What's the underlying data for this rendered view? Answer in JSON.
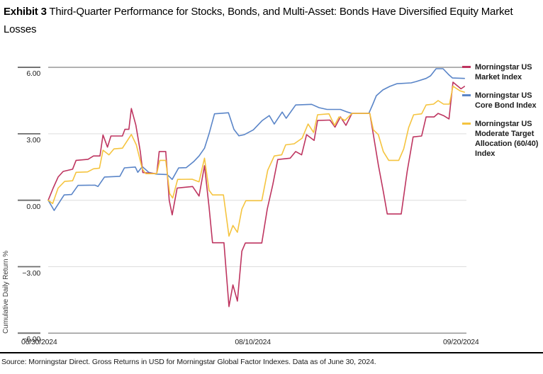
{
  "header": {
    "exhibit_label": "Exhibit 3",
    "title_rest": " Third-Quarter Performance for Stocks, Bonds, and Multi-Asset: Bonds Have Diversified Equity Market Losses"
  },
  "source": "Source: Morningstar Direct. Gross Returns in USD for Morningstar Global Factor Indexes. Data as of June 30, 2024.",
  "legend": {
    "items": [
      {
        "label": "Morningstar US Market Index",
        "color": "#be3560"
      },
      {
        "label": "Morningstar US Core Bond Index",
        "color": "#5a85c8"
      },
      {
        "label": "Morningstar US Moderate Target Allocation (60/40) Index",
        "color": "#f5c43f"
      }
    ]
  },
  "chart_data": {
    "type": "line",
    "title": "Third-Quarter Performance for Stocks, Bonds, and Multi-Asset",
    "ylabel": "Cumulative Daily Return %",
    "xlabel": "",
    "ylim": [
      -6,
      6
    ],
    "grid": "horizontal",
    "legend_position": "right",
    "x_unit": "calendar days since 06/30/2024",
    "y_ticks": [
      {
        "value": 6,
        "label": "6.00",
        "emphasis": true
      },
      {
        "value": 3,
        "label": "3.00",
        "emphasis": false
      },
      {
        "value": 0,
        "label": "0.00",
        "emphasis": false
      },
      {
        "value": -3,
        "label": "−3.00",
        "emphasis": false
      },
      {
        "value": -6,
        "label": "−6.00",
        "emphasis": true
      }
    ],
    "x_ticks": [
      {
        "t": 0,
        "label": "06/30/2024",
        "align": "left"
      },
      {
        "t": 41.1,
        "label": "08/10/2024",
        "align": "center"
      },
      {
        "t": 82.9,
        "label": "09/20/2024",
        "align": "center"
      }
    ],
    "series": [
      {
        "name": "Morningstar US Market Index",
        "color": "#be3560",
        "points": [
          [
            0,
            0
          ],
          [
            1,
            0.55
          ],
          [
            2,
            1.05
          ],
          [
            3,
            1.3
          ],
          [
            4.9,
            1.4
          ],
          [
            5.6,
            1.8
          ],
          [
            8,
            1.85
          ],
          [
            9.1,
            2.0
          ],
          [
            10.4,
            2.0
          ],
          [
            11,
            2.95
          ],
          [
            11.9,
            2.4
          ],
          [
            12.6,
            2.9
          ],
          [
            14.9,
            2.9
          ],
          [
            15.4,
            3.2
          ],
          [
            16.2,
            3.2
          ],
          [
            16.7,
            4.14
          ],
          [
            17.6,
            3.4
          ],
          [
            18.5,
            2.2
          ],
          [
            19,
            1.25
          ],
          [
            21.8,
            1.2
          ],
          [
            22.3,
            2.2
          ],
          [
            23.6,
            2.2
          ],
          [
            24.3,
            0.0
          ],
          [
            24.9,
            -0.66
          ],
          [
            25.9,
            0.55
          ],
          [
            29,
            0.62
          ],
          [
            30.3,
            0.19
          ],
          [
            31.4,
            1.56
          ],
          [
            32.3,
            -0.3
          ],
          [
            33,
            -1.92
          ],
          [
            35.3,
            -1.92
          ],
          [
            36.3,
            -4.8
          ],
          [
            37.1,
            -3.82
          ],
          [
            38,
            -4.55
          ],
          [
            38.9,
            -2.3
          ],
          [
            39.6,
            -1.93
          ],
          [
            42.9,
            -1.93
          ],
          [
            44,
            -0.4
          ],
          [
            45.1,
            0.7
          ],
          [
            46.1,
            1.84
          ],
          [
            48.6,
            1.9
          ],
          [
            49.7,
            2.2
          ],
          [
            50.9,
            2.05
          ],
          [
            51.9,
            2.96
          ],
          [
            52.7,
            2.82
          ],
          [
            53.4,
            2.7
          ],
          [
            54.1,
            3.6
          ],
          [
            56.6,
            3.62
          ],
          [
            57.6,
            3.3
          ],
          [
            58.7,
            3.76
          ],
          [
            59.8,
            3.38
          ],
          [
            61,
            3.92
          ],
          [
            64.6,
            3.92
          ],
          [
            65.3,
            2.96
          ],
          [
            66.3,
            1.6
          ],
          [
            67.3,
            0.4
          ],
          [
            68.1,
            -0.62
          ],
          [
            70.9,
            -0.62
          ],
          [
            72.1,
            1.3
          ],
          [
            73.3,
            2.86
          ],
          [
            75,
            2.9
          ],
          [
            75.9,
            3.76
          ],
          [
            77.5,
            3.76
          ],
          [
            78.3,
            3.92
          ],
          [
            79.4,
            3.82
          ],
          [
            80.5,
            3.67
          ],
          [
            81.3,
            5.33
          ],
          [
            82.9,
            5.03
          ],
          [
            83.6,
            5.14
          ]
        ]
      },
      {
        "name": "Morningstar US Core Bond Index",
        "color": "#5a85c8",
        "points": [
          [
            0,
            0
          ],
          [
            1.2,
            -0.46
          ],
          [
            2.5,
            0.0
          ],
          [
            3.2,
            0.24
          ],
          [
            4.7,
            0.26
          ],
          [
            6,
            0.67
          ],
          [
            9.4,
            0.68
          ],
          [
            10,
            0.62
          ],
          [
            11.3,
            1.05
          ],
          [
            14.4,
            1.08
          ],
          [
            15.3,
            1.46
          ],
          [
            17.5,
            1.5
          ],
          [
            18,
            1.26
          ],
          [
            18.9,
            1.52
          ],
          [
            20.2,
            1.26
          ],
          [
            21.7,
            1.18
          ],
          [
            23.9,
            1.16
          ],
          [
            24.9,
            0.94
          ],
          [
            26.2,
            1.46
          ],
          [
            27.7,
            1.47
          ],
          [
            29.2,
            1.74
          ],
          [
            30.3,
            2.0
          ],
          [
            31.4,
            2.35
          ],
          [
            32.3,
            3.0
          ],
          [
            33.4,
            3.9
          ],
          [
            36.2,
            3.95
          ],
          [
            37.3,
            3.2
          ],
          [
            38.3,
            2.91
          ],
          [
            39.4,
            2.96
          ],
          [
            41.2,
            3.18
          ],
          [
            43,
            3.6
          ],
          [
            44.4,
            3.82
          ],
          [
            45.4,
            3.44
          ],
          [
            47,
            3.98
          ],
          [
            47.8,
            3.7
          ],
          [
            49.7,
            4.3
          ],
          [
            52.9,
            4.33
          ],
          [
            54.4,
            4.18
          ],
          [
            56,
            4.1
          ],
          [
            58.7,
            4.1
          ],
          [
            60.1,
            3.98
          ],
          [
            61,
            3.92
          ],
          [
            64.4,
            3.92
          ],
          [
            65.2,
            4.34
          ],
          [
            65.9,
            4.72
          ],
          [
            67.2,
            4.98
          ],
          [
            68.6,
            5.14
          ],
          [
            70,
            5.26
          ],
          [
            72.9,
            5.3
          ],
          [
            73.9,
            5.36
          ],
          [
            75.9,
            5.5
          ],
          [
            76.8,
            5.62
          ],
          [
            77.9,
            5.94
          ],
          [
            79.3,
            5.94
          ],
          [
            80.4,
            5.68
          ],
          [
            81.2,
            5.52
          ],
          [
            83.6,
            5.5
          ]
        ]
      },
      {
        "name": "Morningstar US Moderate Target Allocation (60/40) Index",
        "color": "#f5c43f",
        "points": [
          [
            0,
            0
          ],
          [
            0.9,
            -0.15
          ],
          [
            2,
            0.55
          ],
          [
            3.3,
            0.85
          ],
          [
            4.9,
            0.88
          ],
          [
            5.6,
            1.26
          ],
          [
            7.9,
            1.28
          ],
          [
            9.1,
            1.42
          ],
          [
            10.3,
            1.45
          ],
          [
            11,
            2.26
          ],
          [
            12.2,
            2.05
          ],
          [
            13.2,
            2.32
          ],
          [
            14.9,
            2.35
          ],
          [
            16.7,
            2.97
          ],
          [
            17.7,
            2.5
          ],
          [
            18.9,
            1.42
          ],
          [
            19.6,
            1.2
          ],
          [
            21.8,
            1.2
          ],
          [
            22.4,
            1.8
          ],
          [
            23.6,
            1.8
          ],
          [
            24.4,
            0.3
          ],
          [
            25,
            0.1
          ],
          [
            26,
            0.94
          ],
          [
            28.9,
            0.95
          ],
          [
            30.3,
            0.83
          ],
          [
            31.4,
            1.9
          ],
          [
            32.3,
            0.45
          ],
          [
            33,
            0.24
          ],
          [
            35.2,
            0.24
          ],
          [
            36.3,
            -1.62
          ],
          [
            37.1,
            -1.14
          ],
          [
            38,
            -1.45
          ],
          [
            38.9,
            -0.4
          ],
          [
            39.7,
            -0.02
          ],
          [
            42.9,
            -0.02
          ],
          [
            44.1,
            1.36
          ],
          [
            45.4,
            2.0
          ],
          [
            46.9,
            2.05
          ],
          [
            47.7,
            2.5
          ],
          [
            49.4,
            2.55
          ],
          [
            51,
            2.8
          ],
          [
            52.2,
            3.44
          ],
          [
            53.3,
            3.06
          ],
          [
            54.1,
            3.86
          ],
          [
            56.4,
            3.9
          ],
          [
            57.5,
            3.38
          ],
          [
            58.4,
            3.76
          ],
          [
            59.6,
            3.6
          ],
          [
            61,
            3.92
          ],
          [
            64.6,
            3.92
          ],
          [
            65.3,
            3.18
          ],
          [
            66.3,
            2.96
          ],
          [
            67.3,
            2.2
          ],
          [
            68.4,
            1.8
          ],
          [
            70.4,
            1.8
          ],
          [
            71.4,
            2.32
          ],
          [
            72.4,
            3.28
          ],
          [
            73.4,
            3.86
          ],
          [
            75,
            3.9
          ],
          [
            75.9,
            4.3
          ],
          [
            77.4,
            4.34
          ],
          [
            78.3,
            4.5
          ],
          [
            79.4,
            4.34
          ],
          [
            80.6,
            4.34
          ],
          [
            81.3,
            5.15
          ],
          [
            82.7,
            4.94
          ],
          [
            83.6,
            4.88
          ]
        ]
      }
    ],
    "colors": {
      "grid_inner": "#dedede",
      "grid_edge": "#8f8f8f",
      "tick_mark": "#6b6b6b"
    }
  }
}
